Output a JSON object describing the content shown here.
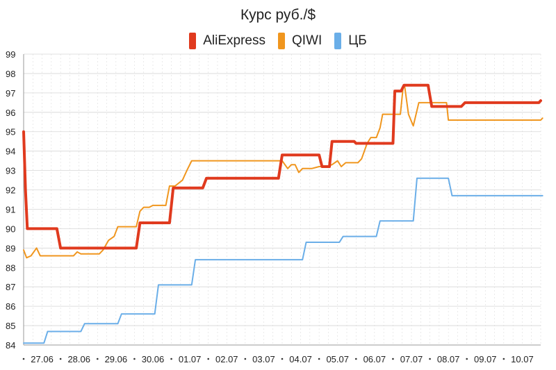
{
  "chart_data": {
    "type": "line",
    "title": "Курс руб./$",
    "xlabel": "",
    "ylabel": "",
    "ylim": [
      84,
      99
    ],
    "xlim": [
      0,
      14
    ],
    "yticks": [
      84,
      85,
      86,
      87,
      88,
      89,
      90,
      91,
      92,
      93,
      94,
      95,
      96,
      97,
      98,
      99
    ],
    "x_tick_positions": [
      0.5,
      1.5,
      2.5,
      3.5,
      4.5,
      5.5,
      6.5,
      7.5,
      8.5,
      9.5,
      10.5,
      11.5,
      12.5,
      13.5
    ],
    "categories": [
      "27.06",
      "28.06",
      "29.06",
      "30.06",
      "01.07",
      "02.07",
      "03.07",
      "04.07",
      "05.07",
      "06.07",
      "07.07",
      "08.07",
      "09.07",
      "10.07"
    ],
    "grid": true,
    "legend_position": "top-center",
    "series": [
      {
        "name": "AliExpress",
        "color": "#e03a1e",
        "line_width": 4,
        "points": [
          [
            0,
            95
          ],
          [
            0.05,
            92
          ],
          [
            0.1,
            90
          ],
          [
            0.9,
            90
          ],
          [
            1.0,
            89
          ],
          [
            3.05,
            89
          ],
          [
            3.15,
            90.3
          ],
          [
            3.95,
            90.3
          ],
          [
            4.05,
            92.1
          ],
          [
            4.85,
            92.1
          ],
          [
            4.95,
            92.6
          ],
          [
            6.9,
            92.6
          ],
          [
            7.0,
            93.8
          ],
          [
            8.0,
            93.8
          ],
          [
            8.08,
            93.2
          ],
          [
            8.28,
            93.2
          ],
          [
            8.35,
            94.5
          ],
          [
            8.95,
            94.5
          ],
          [
            9.0,
            94.4
          ],
          [
            10.0,
            94.4
          ],
          [
            10.05,
            97.1
          ],
          [
            10.22,
            97.1
          ],
          [
            10.3,
            97.4
          ],
          [
            10.95,
            97.4
          ],
          [
            11.05,
            96.3
          ],
          [
            11.85,
            96.3
          ],
          [
            11.95,
            96.5
          ],
          [
            13.95,
            96.5
          ],
          [
            14,
            96.6
          ]
        ]
      },
      {
        "name": "QIWI",
        "color": "#f0961e",
        "line_width": 2,
        "points": [
          [
            0,
            88.9
          ],
          [
            0.08,
            88.5
          ],
          [
            0.2,
            88.6
          ],
          [
            0.35,
            89
          ],
          [
            0.45,
            88.6
          ],
          [
            1.2,
            88.6
          ],
          [
            1.35,
            88.6
          ],
          [
            1.45,
            88.8
          ],
          [
            1.55,
            88.7
          ],
          [
            2.05,
            88.7
          ],
          [
            2.15,
            88.9
          ],
          [
            2.3,
            89.4
          ],
          [
            2.45,
            89.6
          ],
          [
            2.55,
            90.1
          ],
          [
            3.05,
            90.1
          ],
          [
            3.15,
            90.9
          ],
          [
            3.25,
            91.1
          ],
          [
            3.4,
            91.1
          ],
          [
            3.5,
            91.2
          ],
          [
            3.85,
            91.2
          ],
          [
            3.95,
            92.2
          ],
          [
            4.1,
            92.2
          ],
          [
            4.3,
            92.5
          ],
          [
            4.42,
            93
          ],
          [
            4.55,
            93.5
          ],
          [
            7.0,
            93.5
          ],
          [
            7.15,
            93.1
          ],
          [
            7.25,
            93.3
          ],
          [
            7.35,
            93.3
          ],
          [
            7.45,
            92.9
          ],
          [
            7.55,
            93.1
          ],
          [
            7.62,
            93.1
          ],
          [
            7.8,
            93.1
          ],
          [
            8.0,
            93.2
          ],
          [
            8.2,
            93.2
          ],
          [
            8.35,
            93.3
          ],
          [
            8.5,
            93.5
          ],
          [
            8.6,
            93.2
          ],
          [
            8.72,
            93.4
          ],
          [
            9.05,
            93.4
          ],
          [
            9.15,
            93.6
          ],
          [
            9.3,
            94.4
          ],
          [
            9.4,
            94.7
          ],
          [
            9.55,
            94.7
          ],
          [
            9.65,
            95.2
          ],
          [
            9.72,
            95.9
          ],
          [
            10.1,
            95.9
          ],
          [
            10.2,
            95.9
          ],
          [
            10.28,
            97.4
          ],
          [
            10.32,
            97.3
          ],
          [
            10.42,
            95.9
          ],
          [
            10.55,
            95.3
          ],
          [
            10.7,
            96.5
          ],
          [
            11.45,
            96.5
          ],
          [
            11.5,
            95.6
          ],
          [
            14,
            95.6
          ],
          [
            14.05,
            95.7
          ]
        ]
      },
      {
        "name": "ЦБ",
        "color": "#6aaee8",
        "line_width": 2,
        "points": [
          [
            0,
            84.1
          ],
          [
            0.55,
            84.1
          ],
          [
            0.65,
            84.7
          ],
          [
            1.55,
            84.7
          ],
          [
            1.65,
            85.1
          ],
          [
            2.55,
            85.1
          ],
          [
            2.65,
            85.6
          ],
          [
            3.55,
            85.6
          ],
          [
            3.65,
            87.1
          ],
          [
            4.55,
            87.1
          ],
          [
            4.65,
            88.4
          ],
          [
            7.55,
            88.4
          ],
          [
            7.65,
            89.3
          ],
          [
            8.55,
            89.3
          ],
          [
            8.65,
            89.6
          ],
          [
            9.55,
            89.6
          ],
          [
            9.65,
            90.4
          ],
          [
            10.55,
            90.4
          ],
          [
            10.65,
            92.6
          ],
          [
            11.5,
            92.6
          ],
          [
            11.6,
            91.7
          ],
          [
            14.05,
            91.7
          ]
        ]
      }
    ]
  }
}
